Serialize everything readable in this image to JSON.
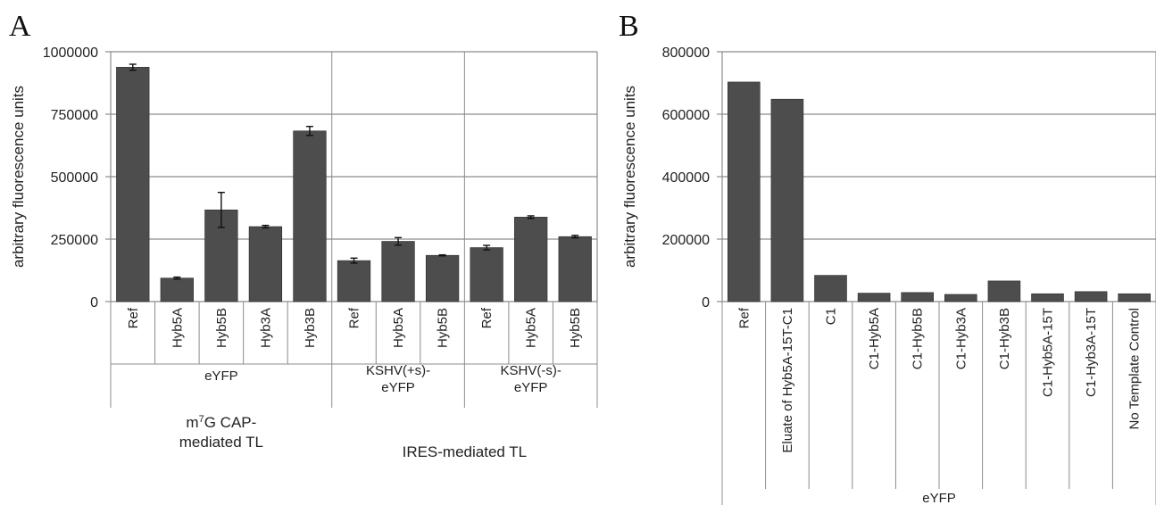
{
  "chart_data": [
    {
      "type": "bar",
      "panel_label": "A",
      "ylabel": "arbitrary fluorescence units",
      "ylim": [
        0,
        1000000
      ],
      "yticks": [
        "0",
        "250000",
        "500000",
        "750000",
        "1000000"
      ],
      "grid": true,
      "categories": [
        "Ref",
        "Hyb5A",
        "Hyb5B",
        "Hyb3A",
        "Hyb3B",
        "Ref",
        "Hyb5A",
        "Hyb5B",
        "Ref",
        "Hyb5A",
        "Hyb5B"
      ],
      "values": [
        938000,
        94000,
        367000,
        300000,
        683000,
        164000,
        241000,
        185000,
        216000,
        338000,
        260000
      ],
      "errors": [
        12000,
        4000,
        70000,
        5000,
        18000,
        10000,
        15000,
        2000,
        9000,
        5000,
        5000
      ],
      "groups": [
        {
          "label": "eYFP",
          "start": 0,
          "count": 5
        },
        {
          "label": "KSHV(+s)-\neYFP",
          "start": 5,
          "count": 3
        },
        {
          "label": "KSHV(-s)-\neYFP",
          "start": 8,
          "count": 3
        }
      ],
      "supergroups": [
        {
          "label": "m7G CAP-\nmediated TL",
          "start": 0,
          "count": 5
        },
        {
          "label": "IRES-mediated TL",
          "start": 5,
          "count": 6
        }
      ]
    },
    {
      "type": "bar",
      "panel_label": "B",
      "ylabel": "arbitrary fluorescence units",
      "ylim": [
        0,
        800000
      ],
      "yticks": [
        "0",
        "200000",
        "400000",
        "600000",
        "800000"
      ],
      "grid": true,
      "categories": [
        "Ref",
        "Eluate of Hyb5A-15T-C1",
        "C1",
        "C1-Hyb5A",
        "C1-Hyb5B",
        "C1-Hyb3A",
        "C1-Hyb3B",
        "C1-Hyb5A-15T",
        "C1-Hyb3A-15T",
        "No Template Control"
      ],
      "values": [
        703000,
        648000,
        84000,
        27000,
        29000,
        23000,
        66000,
        25000,
        32000,
        25000
      ],
      "groups": [
        {
          "label": "eYFP",
          "start": 0,
          "count": 10
        }
      ]
    }
  ]
}
